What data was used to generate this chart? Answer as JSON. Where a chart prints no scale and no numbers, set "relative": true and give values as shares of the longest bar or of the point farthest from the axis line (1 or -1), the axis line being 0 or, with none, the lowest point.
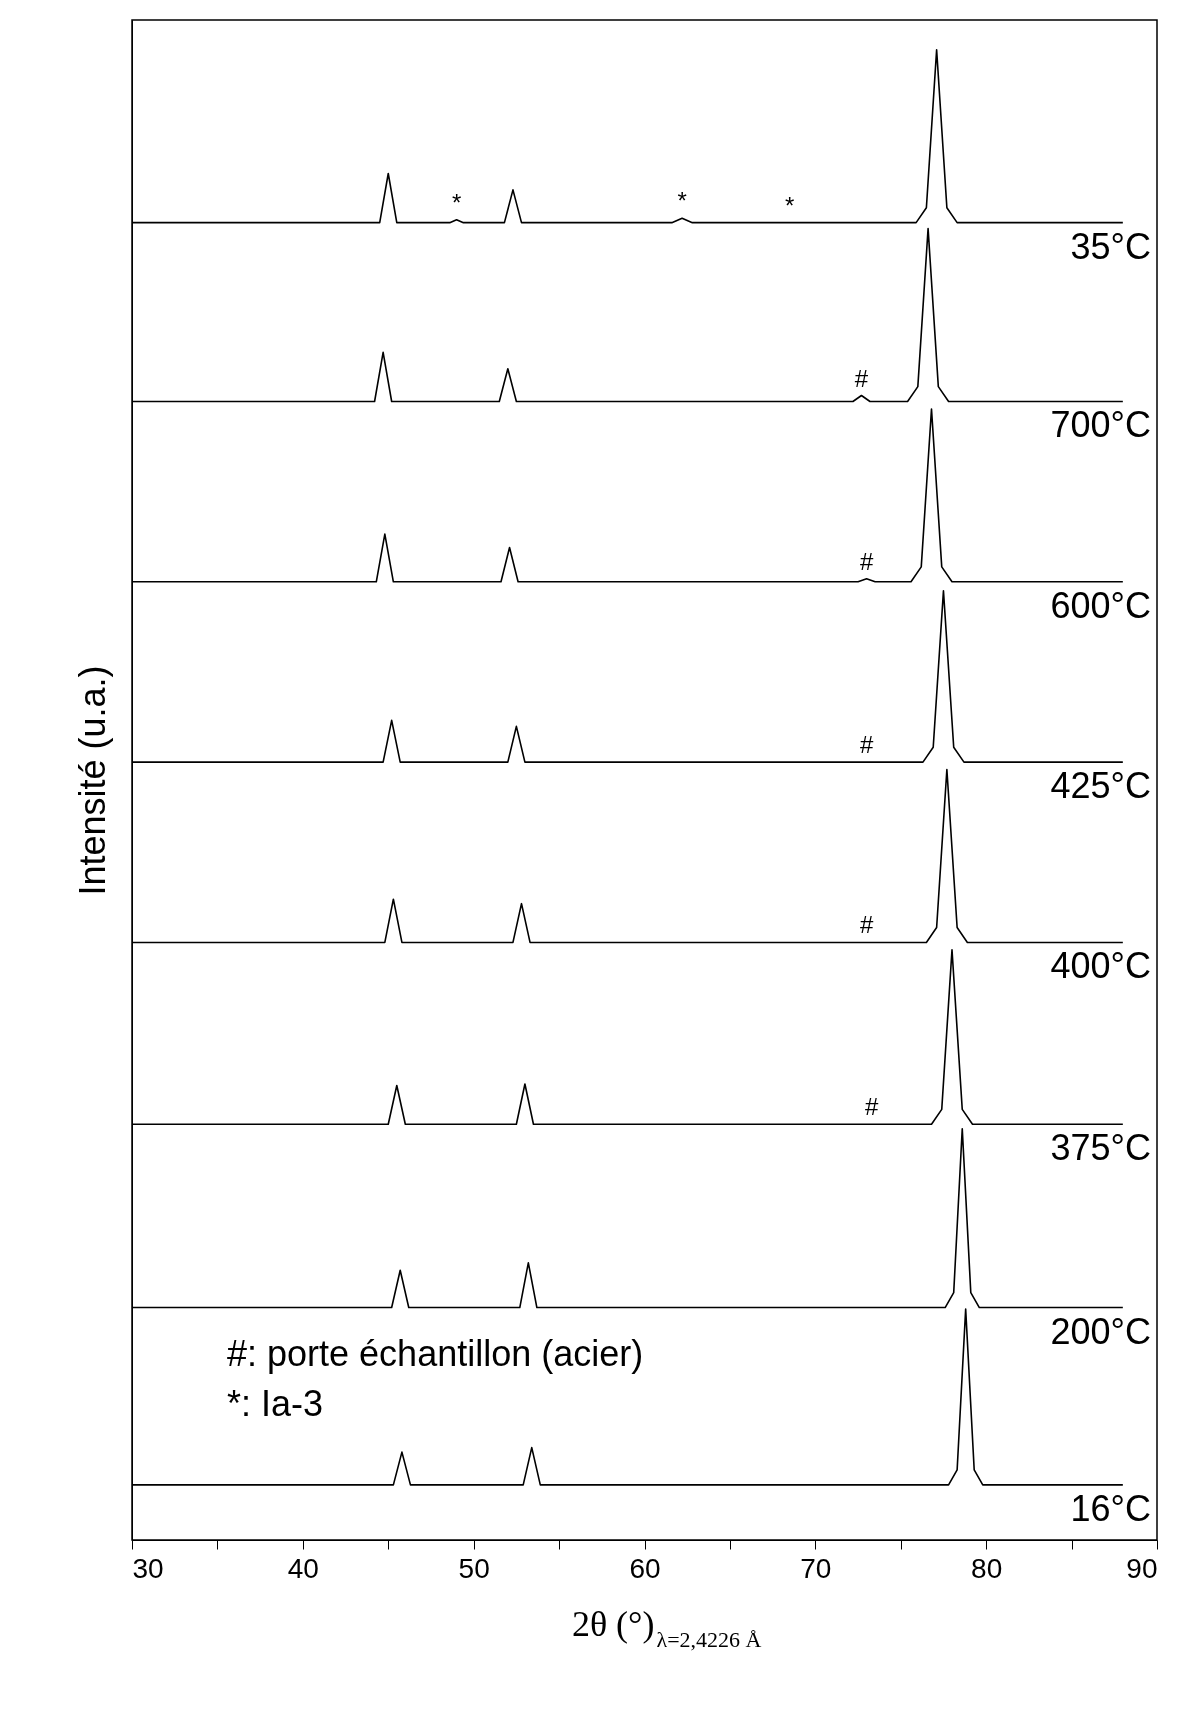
{
  "chart_data": {
    "type": "line",
    "relative": true,
    "xlabel": "2θ (°)$_{λ=2,4226 Å}$",
    "ylabel": "Intensité (u.a.)",
    "xlim": [
      30,
      90
    ],
    "xticks": [
      30,
      {
        "value": 35,
        "label": null
      },
      40,
      {
        "value": 45,
        "label": null
      },
      50,
      {
        "value": 55,
        "label": null
      },
      60,
      {
        "value": 65,
        "label": null
      },
      70,
      {
        "value": 75,
        "label": null
      },
      80,
      {
        "value": 85,
        "label": null
      },
      90
    ],
    "grid": false,
    "legend": false,
    "marker": "none",
    "line_style": "solid",
    "series": [
      {
        "name": "35°C",
        "color": "#000000",
        "x": [
          30,
          44.5,
          45,
          45.5,
          48.6,
          49,
          49.4,
          51.8,
          52.3,
          52.8,
          61.6,
          62.2,
          62.8,
          75.9,
          76.5,
          77.1,
          77.7,
          78.3,
          88
        ],
        "values": [
          0.884,
          0.884,
          0.917,
          0.884,
          0.884,
          0.886,
          0.884,
          0.884,
          0.906,
          0.884,
          0.884,
          0.887,
          0.884,
          0.884,
          0.894,
          1.0,
          0.894,
          0.884,
          0.884
        ]
      },
      {
        "name": "700°C",
        "color": "#000000",
        "x": [
          30,
          44.2,
          44.7,
          45.2,
          51.5,
          52,
          52.5,
          72.2,
          72.7,
          73.2,
          75.4,
          76,
          76.6,
          77.2,
          77.8,
          88
        ],
        "values": [
          0.764,
          0.764,
          0.797,
          0.764,
          0.764,
          0.786,
          0.764,
          0.764,
          0.768,
          0.764,
          0.764,
          0.774,
          0.88,
          0.774,
          0.764,
          0.764
        ]
      },
      {
        "name": "600°C",
        "color": "#000000",
        "x": [
          30,
          44.3,
          44.8,
          45.3,
          51.6,
          52.1,
          52.6,
          72.5,
          73,
          73.5,
          75.6,
          76.2,
          76.8,
          77.4,
          78,
          88
        ],
        "values": [
          0.643,
          0.643,
          0.675,
          0.643,
          0.643,
          0.666,
          0.643,
          0.643,
          0.645,
          0.643,
          0.643,
          0.653,
          0.759,
          0.653,
          0.643,
          0.643
        ]
      },
      {
        "name": "425°C",
        "color": "#000000",
        "x": [
          30,
          44.7,
          45.2,
          45.7,
          52,
          52.5,
          53,
          76.3,
          76.9,
          77.5,
          78.1,
          78.7,
          88
        ],
        "values": [
          0.522,
          0.522,
          0.55,
          0.522,
          0.522,
          0.546,
          0.522,
          0.522,
          0.532,
          0.637,
          0.532,
          0.522,
          0.522
        ]
      },
      {
        "name": "400°C",
        "color": "#000000",
        "x": [
          30,
          44.8,
          45.3,
          45.8,
          52.3,
          52.8,
          53.3,
          76.5,
          77.1,
          77.7,
          78.3,
          78.9,
          88
        ],
        "values": [
          0.401,
          0.401,
          0.43,
          0.401,
          0.401,
          0.427,
          0.401,
          0.401,
          0.411,
          0.517,
          0.411,
          0.401,
          0.401
        ]
      },
      {
        "name": "375°C",
        "color": "#000000",
        "x": [
          30,
          45,
          45.5,
          46,
          52.5,
          53,
          53.5,
          76.8,
          77.4,
          78,
          78.6,
          79.2,
          88
        ],
        "values": [
          0.279,
          0.279,
          0.305,
          0.279,
          0.279,
          0.306,
          0.279,
          0.279,
          0.289,
          0.396,
          0.289,
          0.279,
          0.279
        ]
      },
      {
        "name": "200°C",
        "color": "#000000",
        "x": [
          30,
          45.2,
          45.7,
          46.2,
          52.7,
          53.2,
          53.7,
          77.6,
          78.1,
          78.6,
          79.1,
          79.6,
          88
        ],
        "values": [
          0.156,
          0.156,
          0.181,
          0.156,
          0.156,
          0.186,
          0.156,
          0.156,
          0.166,
          0.276,
          0.166,
          0.156,
          0.156
        ]
      },
      {
        "name": "16°C",
        "color": "#000000",
        "x": [
          30,
          45.3,
          45.8,
          46.3,
          52.9,
          53.4,
          53.9,
          77.8,
          78.3,
          78.8,
          79.3,
          79.8,
          88
        ],
        "values": [
          0.037,
          0.037,
          0.059,
          0.037,
          0.037,
          0.062,
          0.037,
          0.037,
          0.047,
          0.155,
          0.047,
          0.037,
          0.037
        ]
      }
    ],
    "annotations": [
      {
        "text": "*",
        "x": 49,
        "y": 0.886
      },
      {
        "text": "*",
        "x": 62.2,
        "y": 0.887
      },
      {
        "text": "*",
        "x": 68.5,
        "y": 0.884
      },
      {
        "text": "#",
        "x": 72.7,
        "y": 0.768
      },
      {
        "text": "#",
        "x": 73,
        "y": 0.645
      },
      {
        "text": "#",
        "x": 73,
        "y": 0.522
      },
      {
        "text": "#",
        "x": 73,
        "y": 0.401
      },
      {
        "text": "#",
        "x": 73.3,
        "y": 0.279
      },
      "#: porte échantillon (acier)",
      "*: Ia-3"
    ]
  }
}
